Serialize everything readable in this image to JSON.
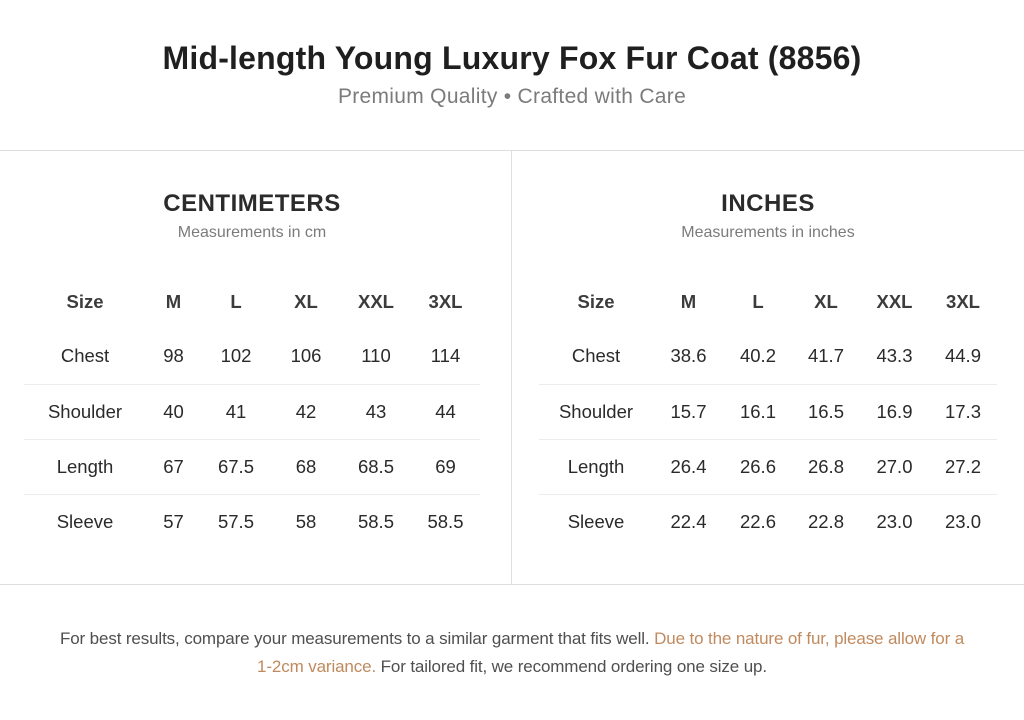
{
  "header": {
    "title": "Mid-length Young Luxury Fox Fur Coat (8856)",
    "subtitle": "Premium Quality • Crafted with Care"
  },
  "panels": [
    {
      "id": "centimeters",
      "title": "CENTIMETERS",
      "subtitle": "Measurements in cm",
      "table": {
        "headers": [
          "Size",
          "M",
          "L",
          "XL",
          "XXL",
          "3XL"
        ],
        "rows": [
          {
            "label": "Chest",
            "values": [
              "98",
              "102",
              "106",
              "110",
              "114"
            ]
          },
          {
            "label": "Shoulder",
            "values": [
              "40",
              "41",
              "42",
              "43",
              "44"
            ]
          },
          {
            "label": "Length",
            "values": [
              "67",
              "67.5",
              "68",
              "68.5",
              "69"
            ]
          },
          {
            "label": "Sleeve",
            "values": [
              "57",
              "57.5",
              "58",
              "58.5",
              "58.5"
            ]
          }
        ]
      }
    },
    {
      "id": "inches",
      "title": "INCHES",
      "subtitle": "Measurements in inches",
      "table": {
        "headers": [
          "Size",
          "M",
          "L",
          "XL",
          "XXL",
          "3XL"
        ],
        "rows": [
          {
            "label": "Chest",
            "values": [
              "38.6",
              "40.2",
              "41.7",
              "43.3",
              "44.9"
            ]
          },
          {
            "label": "Shoulder",
            "values": [
              "15.7",
              "16.1",
              "16.5",
              "16.9",
              "17.3"
            ]
          },
          {
            "label": "Length",
            "values": [
              "26.4",
              "26.6",
              "26.8",
              "27.0",
              "27.2"
            ]
          },
          {
            "label": "Sleeve",
            "values": [
              "22.4",
              "22.6",
              "22.8",
              "23.0",
              "23.0"
            ]
          }
        ]
      }
    }
  ],
  "footer": {
    "note_before": "For best results, compare your measurements to a similar garment that fits well. ",
    "note_highlight": "Due to the nature of fur, please allow for a 1-2cm variance.",
    "note_after": " For tailored fit, we recommend ordering one size up."
  },
  "colors": {
    "accent": "#c08a5e",
    "divider": "#dedede",
    "row_divider": "#ececec",
    "title_text": "#1f1f1f",
    "muted_text": "#7b7b7b",
    "body_text": "#2a2a2a",
    "footnote_text": "#4f4f4f"
  }
}
